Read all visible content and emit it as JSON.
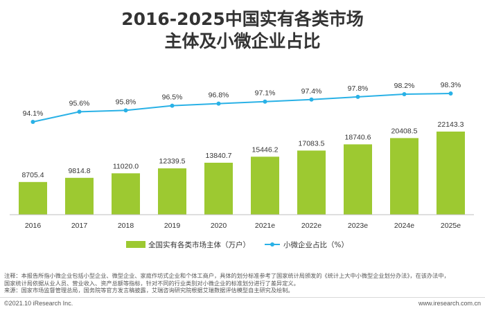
{
  "title": {
    "line1": "2016-2025中国实有各类市场",
    "line2": "主体及小微企业占比"
  },
  "chart_data": {
    "type": "bar",
    "categories": [
      "2016",
      "2017",
      "2018",
      "2019",
      "2020",
      "2021e",
      "2022e",
      "2023e",
      "2024e",
      "2025e"
    ],
    "series": [
      {
        "name": "全国实有各类市场主体（万户）",
        "type": "bar",
        "color": "#9dc931",
        "values": [
          8705.4,
          9814.8,
          11020.0,
          12339.5,
          13840.7,
          15446.2,
          17083.5,
          18740.6,
          20408.5,
          22143.3
        ],
        "labels": [
          "8705.4",
          "9814.8",
          "11020.0",
          "12339.5",
          "13840.7",
          "15446.2",
          "17083.5",
          "18740.6",
          "20408.5",
          "22143.3"
        ]
      },
      {
        "name": "小微企业占比（%）",
        "type": "line",
        "color": "#29b1e6",
        "values": [
          94.1,
          95.6,
          95.8,
          96.5,
          96.8,
          97.1,
          97.4,
          97.8,
          98.2,
          98.3
        ],
        "labels": [
          "94.1%",
          "95.6%",
          "95.8%",
          "96.5%",
          "96.8%",
          "97.1%",
          "97.4%",
          "97.8%",
          "98.2%",
          "98.3%"
        ]
      }
    ],
    "legend_position": "bottom",
    "grid": false
  },
  "notes": {
    "line1": "注释：本报告所指小微企业包括小型企业、微型企业、家庭作坊式企业和个体工商户，具体的划分标准参考了国家统计局颁发的《统计上大中小微型企业划分办法》，在该办法中，",
    "line2": "国家统计局依据从业人员、营业收入、资产总额等指标，针对不同的行业类别对小微企业的标准划分进行了差异定义。",
    "line3": "来源：国家市场监督管理总局，国务院等官方发言稿披露，艾瑞咨询研究院根据艾瑞数据评估模型自主研究及绘制。"
  },
  "footer": {
    "left": "©2021.10 iResearch Inc.",
    "right": "www.iresearch.com.cn"
  }
}
